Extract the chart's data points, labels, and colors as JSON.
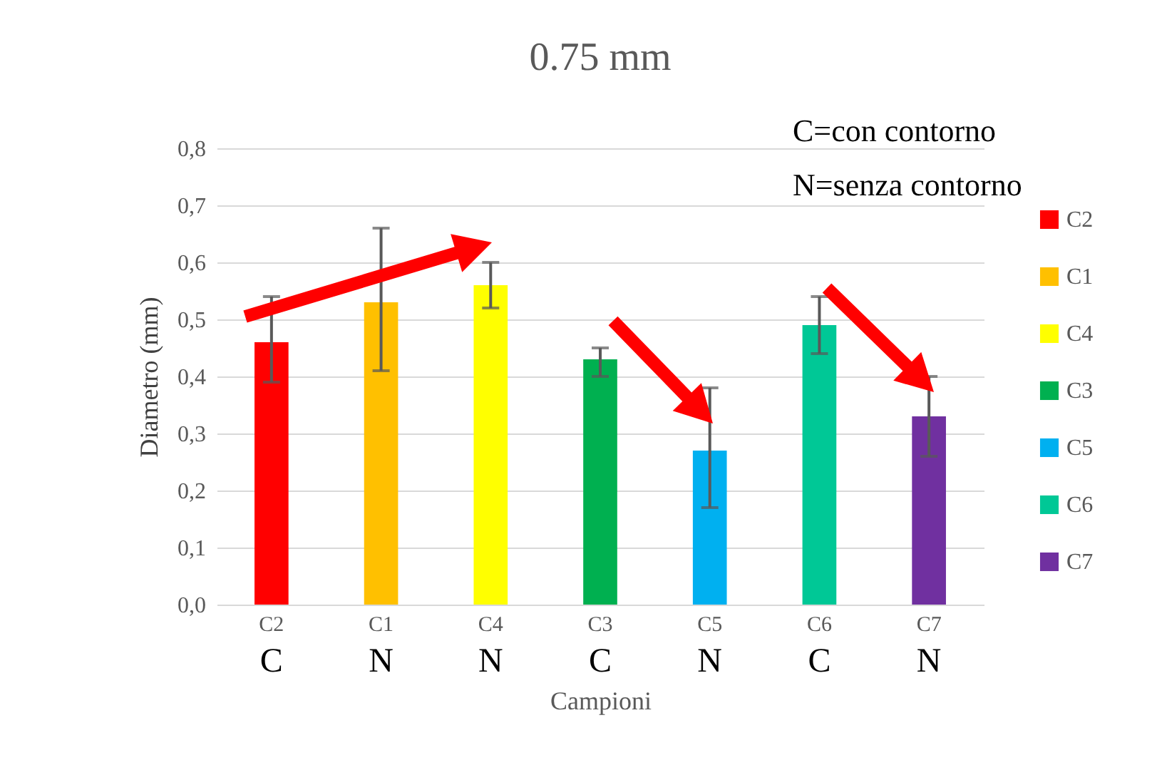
{
  "chart_data": {
    "type": "bar",
    "title": "0.75 mm",
    "xlabel": "Campioni",
    "ylabel": "Diametro (mm)",
    "categories": [
      "C2",
      "C1",
      "C4",
      "C3",
      "C5",
      "C6",
      "C7"
    ],
    "series": [
      {
        "name": "C2",
        "color": "#ff0000",
        "values": [
          0.46,
          null,
          null,
          null,
          null,
          null,
          null
        ],
        "errors": [
          [
            0.39,
            0.54
          ],
          null,
          null,
          null,
          null,
          null,
          null
        ]
      },
      {
        "name": "C1",
        "color": "#ffc000",
        "values": [
          null,
          0.53,
          null,
          null,
          null,
          null,
          null
        ],
        "errors": [
          null,
          [
            0.41,
            0.66
          ],
          null,
          null,
          null,
          null,
          null
        ]
      },
      {
        "name": "C4",
        "color": "#ffff00",
        "values": [
          null,
          null,
          0.56,
          null,
          null,
          null,
          null
        ],
        "errors": [
          null,
          null,
          [
            0.52,
            0.6
          ],
          null,
          null,
          null,
          null
        ]
      },
      {
        "name": "C3",
        "color": "#00b050",
        "values": [
          null,
          null,
          null,
          0.43,
          null,
          null,
          null
        ],
        "errors": [
          null,
          null,
          null,
          [
            0.4,
            0.45
          ],
          null,
          null,
          null
        ]
      },
      {
        "name": "C5",
        "color": "#00b0f0",
        "values": [
          null,
          null,
          null,
          null,
          0.27,
          null,
          null
        ],
        "errors": [
          null,
          null,
          null,
          null,
          [
            0.17,
            0.38
          ],
          null,
          null
        ]
      },
      {
        "name": "C6",
        "color": "#00c896",
        "values": [
          null,
          null,
          null,
          null,
          null,
          0.49,
          null
        ],
        "errors": [
          null,
          null,
          null,
          null,
          null,
          [
            0.44,
            0.54
          ],
          null
        ]
      },
      {
        "name": "C7",
        "color": "#7030a0",
        "values": [
          null,
          null,
          null,
          null,
          null,
          null,
          0.33
        ],
        "errors": [
          null,
          null,
          null,
          null,
          null,
          null,
          [
            0.26,
            0.4
          ]
        ]
      }
    ],
    "ylim": [
      0,
      0.8
    ],
    "yticks": [
      {
        "value": 0,
        "label": "0,0"
      },
      {
        "value": 0.1,
        "label": "0,1"
      },
      {
        "value": 0.2,
        "label": "0,2"
      },
      {
        "value": 0.3,
        "label": "0,3"
      },
      {
        "value": 0.4,
        "label": "0,4"
      },
      {
        "value": 0.5,
        "label": "0,5"
      },
      {
        "value": 0.6,
        "label": "0,6"
      },
      {
        "value": 0.7,
        "label": "0,7"
      },
      {
        "value": 0.8,
        "label": "0,8"
      }
    ],
    "grid": "y",
    "legend": "right",
    "annotations": [
      "C=con contorno",
      "N=senza contorno",
      "C",
      "N",
      "N",
      "C",
      "N",
      "C",
      "N"
    ]
  }
}
